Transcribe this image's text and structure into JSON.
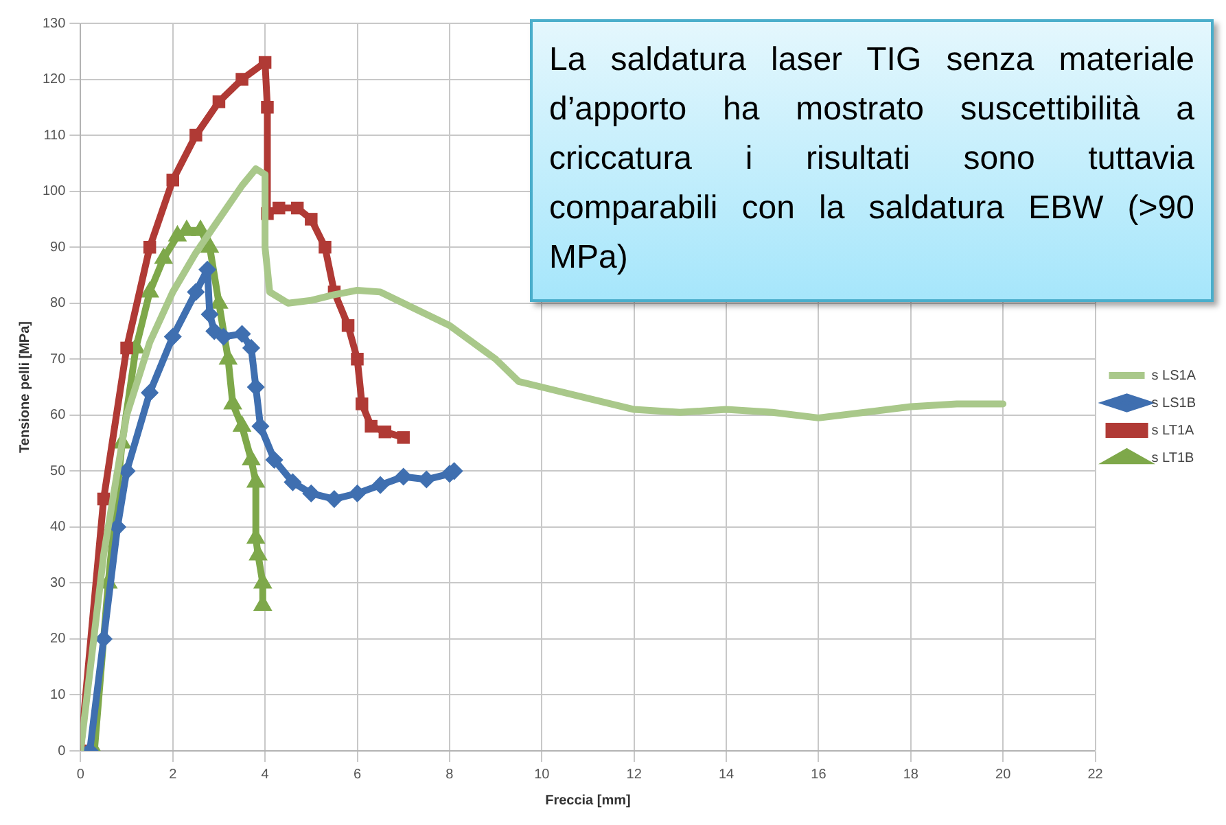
{
  "chart_data": {
    "type": "line",
    "xlabel": "Freccia [mm]",
    "ylabel": "Tensione pelli [MPa]",
    "annotations": [
      "La saldatura laser TIG senza materiale d’apporto ha mostrato suscettibilità a criccatura i risultati sono tuttavia comparabili con la saldatura EBW (>90 MPa)"
    ],
    "xlim": [
      0,
      22
    ],
    "xticks": [
      0,
      2,
      4,
      6,
      8,
      10,
      12,
      14,
      16,
      18,
      20,
      22
    ],
    "ylim": [
      0,
      130
    ],
    "yticks": [
      0,
      10,
      20,
      30,
      40,
      50,
      60,
      70,
      80,
      90,
      100,
      110,
      120,
      130
    ],
    "grid": true,
    "legend": "right",
    "series": [
      {
        "name": "s LS1A",
        "color": "#a9c88a",
        "marker": "none",
        "x": [
          0,
          0.5,
          1,
          1.5,
          2,
          2.5,
          3,
          3.5,
          3.8,
          4.0,
          4.0,
          4.1,
          4.5,
          5,
          5.5,
          6,
          6.5,
          7,
          7.5,
          8,
          8.5,
          9,
          9.5,
          10,
          11,
          12,
          13,
          14,
          15,
          16,
          17,
          18,
          19,
          20
        ],
        "values": [
          0,
          35,
          60,
          73,
          82,
          89,
          95,
          101,
          104,
          103,
          90,
          82,
          80,
          80.5,
          81.5,
          82.3,
          82,
          80,
          78,
          76,
          73,
          70,
          66,
          65,
          63,
          61,
          60.5,
          61,
          60.5,
          59.5,
          60.5,
          61.5,
          62,
          62
        ]
      },
      {
        "name": "s LS1B",
        "color": "#3f6fb0",
        "marker": "diamond",
        "x": [
          0.2,
          0.5,
          0.8,
          1,
          1.5,
          2,
          2.5,
          2.75,
          2.8,
          2.9,
          3.1,
          3.5,
          3.7,
          3.8,
          3.9,
          4.2,
          4.6,
          5,
          5.5,
          6,
          6.5,
          7,
          7.5,
          8,
          8.1
        ],
        "values": [
          0,
          20,
          40,
          50,
          64,
          74,
          82,
          86,
          78,
          75,
          74,
          74.5,
          72,
          65,
          58,
          52,
          48,
          46,
          45,
          46,
          47.5,
          49,
          48.5,
          49.5,
          50
        ]
      },
      {
        "name": "s LT1A",
        "color": "#b03a35",
        "marker": "square",
        "x": [
          0,
          0.5,
          1,
          1.5,
          2,
          2.5,
          3,
          3.5,
          4,
          4.05,
          4.05,
          4.3,
          4.7,
          5,
          5.3,
          5.5,
          5.8,
          6,
          6.1,
          6.3,
          6.6,
          7
        ],
        "values": [
          0,
          45,
          72,
          90,
          102,
          110,
          116,
          120,
          123,
          115,
          96,
          97,
          97,
          95,
          90,
          82,
          76,
          70,
          62,
          58,
          57,
          56
        ]
      },
      {
        "name": "s LT1B",
        "color": "#7ea84a",
        "marker": "triangle",
        "x": [
          0.3,
          0.6,
          0.9,
          1.2,
          1.5,
          1.8,
          2.1,
          2.3,
          2.6,
          2.8,
          3.0,
          3.2,
          3.3,
          3.5,
          3.7,
          3.8,
          3.8,
          3.85,
          3.95,
          3.95
        ],
        "values": [
          0,
          30,
          55,
          72,
          82,
          88,
          92,
          93,
          93,
          90,
          80,
          70,
          62,
          58,
          52,
          48,
          38,
          35,
          30,
          26
        ]
      }
    ]
  }
}
